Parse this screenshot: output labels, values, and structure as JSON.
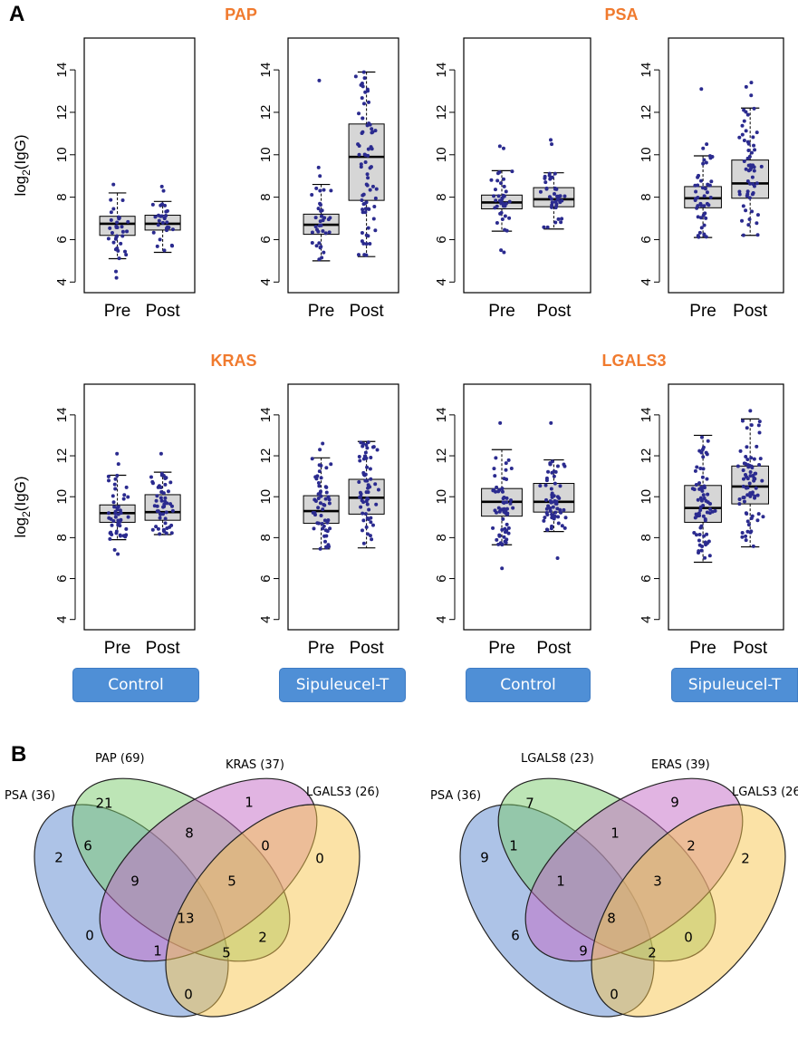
{
  "panel_letters": {
    "a": "A",
    "b": "B"
  },
  "y_label": {
    "main": "log",
    "sub": "2",
    "rest": "(IgG)"
  },
  "group_labels": [
    "Control",
    "Sipuleucel-T",
    "Control",
    "Sipuleucel-T"
  ],
  "colors": {
    "title": "#f07a2e",
    "point": "#2b2b8f",
    "box_fill": "#d6d6d6",
    "button": "#4f8fd6",
    "venn": [
      "#5b87cf",
      "#7ccb6e",
      "#c36ac6",
      "#f7c54e"
    ]
  },
  "chart_data": [
    {
      "type": "box",
      "title": "PAP",
      "ylabel": "log2(IgG)",
      "ylim": [
        4,
        15
      ],
      "yticks": [
        4,
        6,
        8,
        10,
        12,
        14
      ],
      "panels": [
        {
          "group": "Control",
          "categories": [
            "Pre",
            "Post"
          ],
          "boxes": [
            {
              "min": 5.1,
              "q1": 6.2,
              "median": 6.75,
              "q3": 7.1,
              "max": 8.2,
              "outliers": [
                4.2,
                4.5,
                8.6
              ]
            },
            {
              "min": 5.4,
              "q1": 6.45,
              "median": 6.75,
              "q3": 7.15,
              "max": 7.8,
              "outliers": [
                8.3,
                8.5
              ]
            }
          ]
        },
        {
          "group": "Sipuleucel-T",
          "categories": [
            "Pre",
            "Post"
          ],
          "boxes": [
            {
              "min": 5.0,
              "q1": 6.25,
              "median": 6.7,
              "q3": 7.2,
              "max": 8.6,
              "outliers": [
                9.0,
                9.4,
                13.5
              ]
            },
            {
              "min": 5.2,
              "q1": 7.85,
              "median": 9.9,
              "q3": 11.45,
              "max": 13.9,
              "outliers": []
            }
          ]
        }
      ]
    },
    {
      "type": "box",
      "title": "PSA",
      "ylabel": "log2(IgG)",
      "ylim": [
        4,
        15
      ],
      "yticks": [
        4,
        6,
        8,
        10,
        12,
        14
      ],
      "panels": [
        {
          "group": "Control",
          "categories": [
            "Pre",
            "Post"
          ],
          "boxes": [
            {
              "min": 6.4,
              "q1": 7.45,
              "median": 7.75,
              "q3": 8.1,
              "max": 9.25,
              "outliers": [
                5.4,
                5.5,
                10.3,
                10.4
              ]
            },
            {
              "min": 6.5,
              "q1": 7.55,
              "median": 7.9,
              "q3": 8.45,
              "max": 9.15,
              "outliers": [
                10.5,
                10.7
              ]
            }
          ]
        },
        {
          "group": "Sipuleucel-T",
          "categories": [
            "Pre",
            "Post"
          ],
          "boxes": [
            {
              "min": 6.1,
              "q1": 7.5,
              "median": 7.95,
              "q3": 8.5,
              "max": 9.95,
              "outliers": [
                10.3,
                10.5,
                13.1
              ]
            },
            {
              "min": 6.2,
              "q1": 7.95,
              "median": 8.65,
              "q3": 9.75,
              "max": 12.2,
              "outliers": [
                12.8,
                13.2,
                13.4
              ]
            }
          ]
        }
      ]
    },
    {
      "type": "box",
      "title": "KRAS",
      "ylabel": "log2(IgG)",
      "ylim": [
        4,
        15
      ],
      "yticks": [
        4,
        6,
        8,
        10,
        12,
        14
      ],
      "panels": [
        {
          "group": "Control",
          "categories": [
            "Pre",
            "Post"
          ],
          "boxes": [
            {
              "min": 7.9,
              "q1": 8.75,
              "median": 9.2,
              "q3": 9.6,
              "max": 11.05,
              "outliers": [
                7.2,
                7.4,
                11.6,
                12.1
              ]
            },
            {
              "min": 8.15,
              "q1": 8.85,
              "median": 9.25,
              "q3": 10.1,
              "max": 11.2,
              "outliers": [
                12.1
              ]
            }
          ]
        },
        {
          "group": "Sipuleucel-T",
          "categories": [
            "Pre",
            "Post"
          ],
          "boxes": [
            {
              "min": 7.45,
              "q1": 8.7,
              "median": 9.3,
              "q3": 10.05,
              "max": 11.9,
              "outliers": [
                12.3,
                12.6
              ]
            },
            {
              "min": 7.5,
              "q1": 9.15,
              "median": 9.95,
              "q3": 10.85,
              "max": 12.7,
              "outliers": []
            }
          ]
        }
      ]
    },
    {
      "type": "box",
      "title": "LGALS3",
      "ylabel": "log2(IgG)",
      "ylim": [
        4,
        15
      ],
      "yticks": [
        4,
        6,
        8,
        10,
        12,
        14
      ],
      "panels": [
        {
          "group": "Control",
          "categories": [
            "Pre",
            "Post"
          ],
          "boxes": [
            {
              "min": 7.65,
              "q1": 9.05,
              "median": 9.75,
              "q3": 10.4,
              "max": 12.3,
              "outliers": [
                6.5,
                13.6
              ]
            },
            {
              "min": 8.3,
              "q1": 9.25,
              "median": 9.75,
              "q3": 10.65,
              "max": 11.8,
              "outliers": [
                7.0,
                13.6
              ]
            }
          ]
        },
        {
          "group": "Sipuleucel-T",
          "categories": [
            "Pre",
            "Post"
          ],
          "boxes": [
            {
              "min": 6.8,
              "q1": 8.75,
              "median": 9.45,
              "q3": 10.55,
              "max": 13.0,
              "outliers": []
            },
            {
              "min": 7.55,
              "q1": 9.65,
              "median": 10.5,
              "q3": 11.5,
              "max": 13.8,
              "outliers": [
                14.2
              ]
            }
          ]
        }
      ]
    },
    {
      "type": "venn",
      "sets": [
        "PSA (36)",
        "PAP (69)",
        "KRAS (37)",
        "LGALS3 (26)"
      ],
      "regions": [
        {
          "key": "A",
          "value": "2"
        },
        {
          "key": "B",
          "value": "21"
        },
        {
          "key": "C",
          "value": "1"
        },
        {
          "key": "D",
          "value": "0"
        },
        {
          "key": "AB",
          "value": "6"
        },
        {
          "key": "BC",
          "value": "8"
        },
        {
          "key": "CD",
          "value": "0"
        },
        {
          "key": "ABC",
          "value": "9"
        },
        {
          "key": "BCD",
          "value": "5"
        },
        {
          "key": "AC",
          "value": "0"
        },
        {
          "key": "ABCD",
          "value": "13"
        },
        {
          "key": "BD",
          "value": "2"
        },
        {
          "key": "ACD",
          "value": "1"
        },
        {
          "key": "ABD",
          "value": "5"
        },
        {
          "key": "AD",
          "value": "0"
        }
      ]
    },
    {
      "type": "venn",
      "sets": [
        "PSA (36)",
        "LGALS8 (23)",
        "ERAS (39)",
        "LGALS3 (26)"
      ],
      "regions": [
        {
          "key": "A",
          "value": "9"
        },
        {
          "key": "B",
          "value": "7"
        },
        {
          "key": "C",
          "value": "9"
        },
        {
          "key": "D",
          "value": "2"
        },
        {
          "key": "AB",
          "value": "1"
        },
        {
          "key": "BC",
          "value": "1"
        },
        {
          "key": "CD",
          "value": "2"
        },
        {
          "key": "ABC",
          "value": "1"
        },
        {
          "key": "BCD",
          "value": "3"
        },
        {
          "key": "AC",
          "value": "6"
        },
        {
          "key": "ABCD",
          "value": "8"
        },
        {
          "key": "BD",
          "value": "0"
        },
        {
          "key": "ACD",
          "value": "9"
        },
        {
          "key": "ABD",
          "value": "2"
        },
        {
          "key": "AD",
          "value": "0"
        }
      ]
    }
  ]
}
